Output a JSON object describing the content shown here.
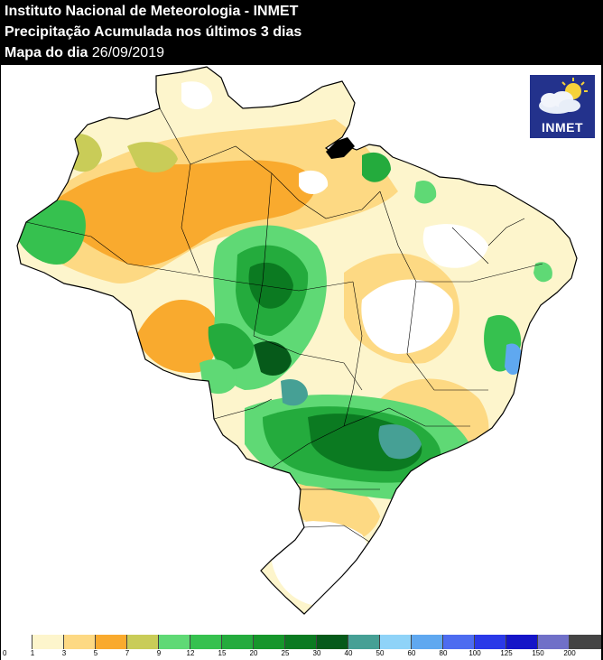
{
  "header": {
    "line1": "Instituto Nacional de Meteorologia - INMET",
    "line2": "Precipitação Acumulada nos últimos 3 dias",
    "line3_label": "Mapa do dia",
    "line3_date": "26/09/2019"
  },
  "logo": {
    "text": "INMET",
    "icon": "sun-cloud-icon"
  },
  "legend": {
    "labels": [
      "0",
      "1",
      "3",
      "5",
      "7",
      "9",
      "12",
      "15",
      "20",
      "25",
      "30",
      "40",
      "50",
      "60",
      "80",
      "100",
      "125",
      "150",
      "200"
    ],
    "colors": [
      "#ffffff",
      "#fdf5cc",
      "#fdd983",
      "#f9aa2e",
      "#c9cc58",
      "#5fd975",
      "#36c14f",
      "#24ab3d",
      "#16962b",
      "#0b7a21",
      "#065a1a",
      "#46a095",
      "#8fd3f8",
      "#5fa8f0",
      "#4d6cf0",
      "#2a39e8",
      "#1515c8",
      "#7070c8",
      "#444444"
    ]
  }
}
